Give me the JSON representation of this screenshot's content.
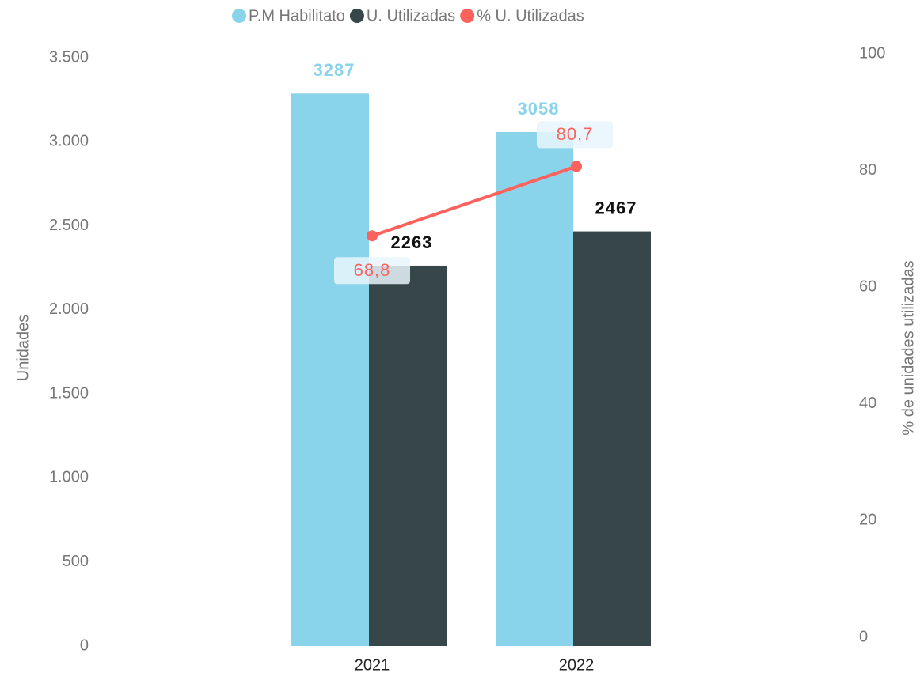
{
  "chart_data": {
    "type": "bar",
    "categories": [
      "2021",
      "2022"
    ],
    "series": [
      {
        "name": "P.M Habilitato",
        "color": "#8ad4eb",
        "values": [
          3287,
          3058
        ]
      },
      {
        "name": "U. Utilizadas",
        "color": "#374649",
        "values": [
          2263,
          2467
        ]
      },
      {
        "name": "% U. Utilizadas",
        "color": "#fd625e",
        "type": "line",
        "axis": "y2",
        "values": [
          68.8,
          80.7
        ],
        "value_labels": [
          "68,8",
          "80,7"
        ]
      }
    ],
    "y_label": "Unidades",
    "y2_label": "% de unidades utilizadas",
    "ylim": [
      0,
      3500
    ],
    "yticks": [
      0,
      500,
      {
        "value": 1000,
        "label": "1.000"
      },
      {
        "value": 1500,
        "label": "1.500"
      },
      {
        "value": 2000,
        "label": "2.000"
      },
      {
        "value": 2500,
        "label": "2.500"
      },
      {
        "value": 3000,
        "label": "3.000"
      },
      {
        "value": 3500,
        "label": "3.500"
      }
    ],
    "y2lim": [
      0,
      100
    ],
    "y2ticks": [
      0,
      20,
      40,
      60,
      80,
      100
    ],
    "legend": "top"
  }
}
